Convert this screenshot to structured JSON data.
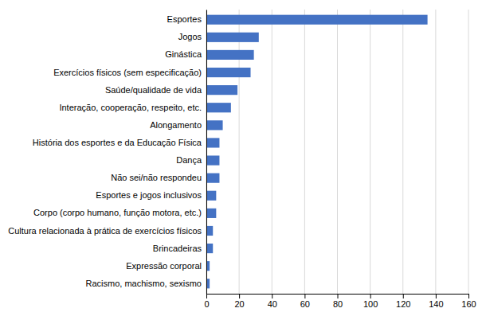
{
  "chart_data": {
    "type": "bar",
    "orientation": "horizontal",
    "categories": [
      "Racismo, machismo, sexismo",
      "Expressão corporal",
      "Brincadeiras",
      "Cultura relacionada à prática de exercícios físicos",
      "Corpo (corpo humano, função motora, etc.)",
      "Esportes e jogos inclusivos",
      "Não sei/não respondeu",
      "Dança",
      "História dos esportes e da Educação Física",
      "Alongamento",
      "Interação, cooperação, respeito, etc.",
      "Saúde/qualidade de vida",
      "Exercícios físicos (sem especificação)",
      "Ginástica",
      "Jogos",
      "Esportes"
    ],
    "values": [
      2,
      2,
      4,
      4,
      6,
      6,
      8,
      8,
      8,
      10,
      15,
      19,
      27,
      29,
      32,
      135
    ],
    "color": "#4472C4",
    "xlim": [
      0,
      160
    ],
    "xticks": [
      0,
      20,
      40,
      60,
      80,
      100,
      120,
      140,
      160
    ],
    "grid": true
  }
}
